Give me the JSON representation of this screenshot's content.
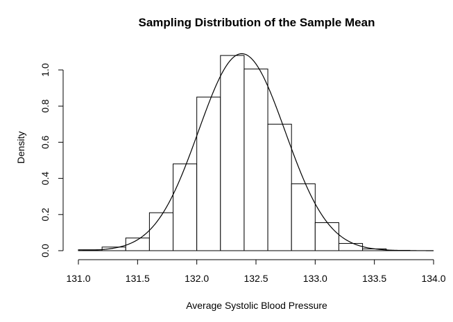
{
  "chart_data": {
    "type": "bar",
    "title": "Sampling Distribution of the Sample Mean",
    "xlabel": "Average Systolic Blood Pressure",
    "ylabel": "Density",
    "xlim": [
      131.0,
      134.0
    ],
    "ylim": [
      0.0,
      1.1
    ],
    "x_ticks": [
      "131.0",
      "131.5",
      "132.0",
      "132.5",
      "133.0",
      "133.5",
      "134.0"
    ],
    "y_ticks": [
      "0.0",
      "0.2",
      "0.4",
      "0.6",
      "0.8",
      "1.0"
    ],
    "bins": [
      {
        "start": 131.0,
        "end": 131.2,
        "density": 0.005
      },
      {
        "start": 131.2,
        "end": 131.4,
        "density": 0.02
      },
      {
        "start": 131.4,
        "end": 131.6,
        "density": 0.07
      },
      {
        "start": 131.6,
        "end": 131.8,
        "density": 0.21
      },
      {
        "start": 131.8,
        "end": 132.0,
        "density": 0.48
      },
      {
        "start": 132.0,
        "end": 132.2,
        "density": 0.85
      },
      {
        "start": 132.2,
        "end": 132.4,
        "density": 1.08
      },
      {
        "start": 132.4,
        "end": 132.6,
        "density": 1.005
      },
      {
        "start": 132.6,
        "end": 132.8,
        "density": 0.7
      },
      {
        "start": 132.8,
        "end": 133.0,
        "density": 0.37
      },
      {
        "start": 133.0,
        "end": 133.2,
        "density": 0.155
      },
      {
        "start": 133.2,
        "end": 133.4,
        "density": 0.04
      },
      {
        "start": 133.4,
        "end": 133.6,
        "density": 0.01
      },
      {
        "start": 133.6,
        "end": 133.8,
        "density": 0.002
      }
    ],
    "density_curve": {
      "mean": 132.38,
      "sd": 0.366
    },
    "grid": false,
    "colors": {
      "bar_fill": "#ffffff",
      "bar_stroke": "#000000",
      "curve": "#000000",
      "axis": "#000000"
    }
  }
}
